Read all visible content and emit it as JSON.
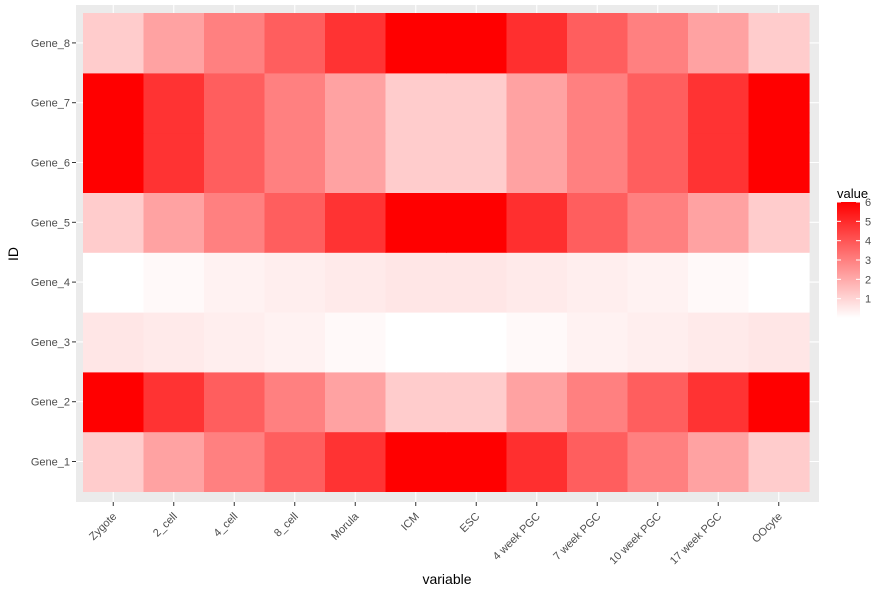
{
  "chart_data": {
    "type": "heatmap",
    "title": "",
    "xlabel": "variable",
    "ylabel": "ID",
    "x": [
      "Zygote",
      "2_cell",
      "4_cell",
      "8_cell",
      "Morula",
      "ICM",
      "ESC",
      "4 week PGC",
      "7 week PGC",
      "10 week PGC",
      "17 week PGC",
      "OOcyte"
    ],
    "y": [
      "Gene_1",
      "Gene_2",
      "Gene_3",
      "Gene_4",
      "Gene_5",
      "Gene_6",
      "Gene_7",
      "Gene_8"
    ],
    "z": [
      [
        1.2,
        2.2,
        3.0,
        3.8,
        4.8,
        6.0,
        6.0,
        4.9,
        3.8,
        3.0,
        2.2,
        1.2
      ],
      [
        6.0,
        4.8,
        3.8,
        3.0,
        2.2,
        1.2,
        1.2,
        2.2,
        3.0,
        3.8,
        4.8,
        6.0
      ],
      [
        0.6,
        0.5,
        0.4,
        0.3,
        0.15,
        0.0,
        0.0,
        0.15,
        0.3,
        0.4,
        0.5,
        0.6
      ],
      [
        0.0,
        0.15,
        0.3,
        0.4,
        0.5,
        0.6,
        0.6,
        0.5,
        0.4,
        0.3,
        0.15,
        0.0
      ],
      [
        1.2,
        2.2,
        3.0,
        3.8,
        4.8,
        6.0,
        6.0,
        4.9,
        3.8,
        3.0,
        2.2,
        1.2
      ],
      [
        6.0,
        4.8,
        3.8,
        3.0,
        2.2,
        1.2,
        1.2,
        2.2,
        3.0,
        3.8,
        4.8,
        6.0
      ],
      [
        6.0,
        4.8,
        3.8,
        3.0,
        2.2,
        1.2,
        1.2,
        2.2,
        3.0,
        3.8,
        4.8,
        6.0
      ],
      [
        1.2,
        2.2,
        3.0,
        3.8,
        4.8,
        6.0,
        6.0,
        4.9,
        3.8,
        3.0,
        2.2,
        1.2
      ]
    ],
    "zlim": [
      0,
      6
    ],
    "colors": {
      "low": "#ffffff",
      "high": "#ff0000",
      "panel": "#ebebeb",
      "grid": "#ffffff"
    },
    "legend": {
      "title": "value",
      "ticks": [
        "1",
        "2",
        "3",
        "4",
        "5",
        "6"
      ],
      "placement": "right"
    },
    "grid": true
  }
}
